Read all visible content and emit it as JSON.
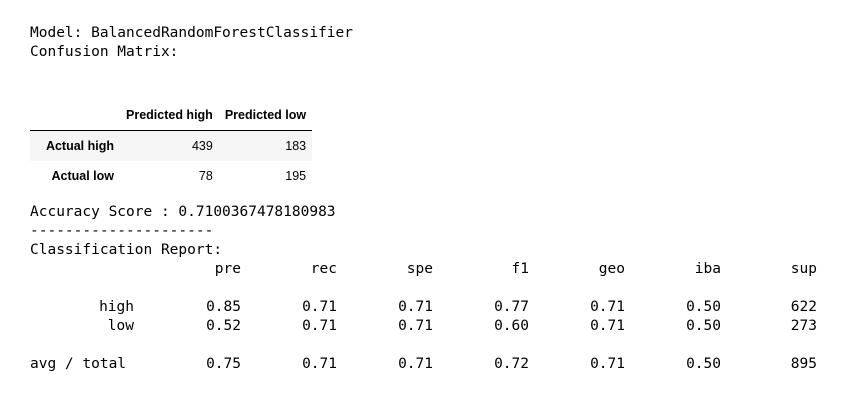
{
  "model_line": "Model: BalancedRandomForestClassifier",
  "cm_title": "Confusion Matrix:",
  "confusion_matrix": {
    "columns": [
      "Predicted high",
      "Predicted low"
    ],
    "rows": [
      {
        "label": "Actual high",
        "values": [
          "439",
          "183"
        ]
      },
      {
        "label": "Actual low",
        "values": [
          "78",
          "195"
        ]
      }
    ]
  },
  "accuracy_line": "Accuracy Score : 0.7100367478180983",
  "separator": "---------------------",
  "report_title": "Classification Report:",
  "report": {
    "headers": [
      "pre",
      "rec",
      "spe",
      "f1",
      "geo",
      "iba",
      "sup"
    ],
    "rows": [
      {
        "label": "high",
        "values": [
          "0.85",
          "0.71",
          "0.71",
          "0.77",
          "0.71",
          "0.50",
          "622"
        ]
      },
      {
        "label": "low",
        "values": [
          "0.52",
          "0.71",
          "0.71",
          "0.60",
          "0.71",
          "0.50",
          "273"
        ]
      }
    ],
    "total": {
      "label": "avg / total",
      "values": [
        "0.75",
        "0.71",
        "0.71",
        "0.72",
        "0.71",
        "0.50",
        "895"
      ]
    }
  }
}
